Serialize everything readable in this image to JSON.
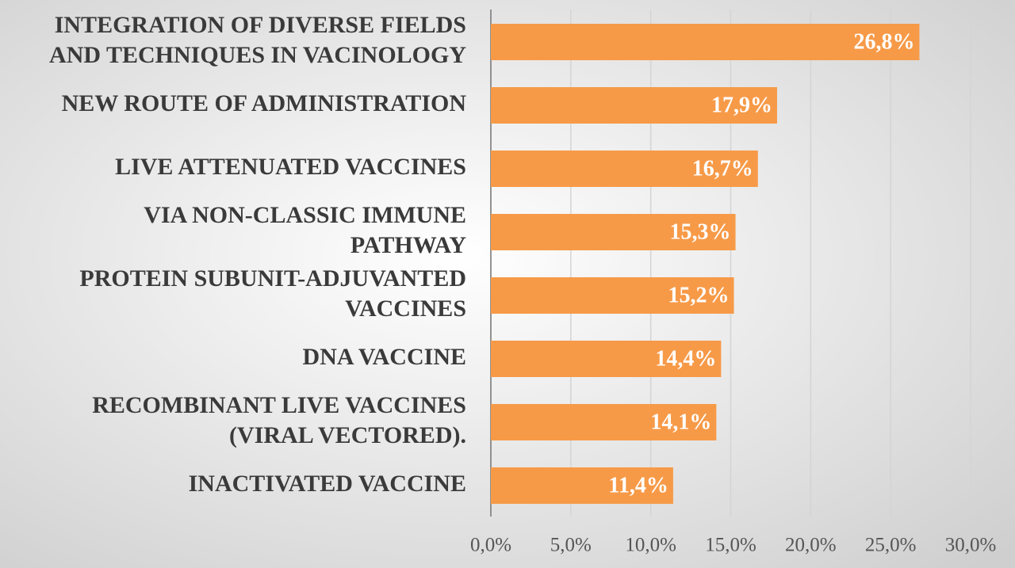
{
  "chart_data": {
    "type": "bar",
    "orientation": "horizontal",
    "categories": [
      "INTEGRATION OF DIVERSE FIELDS\nAND TECHNIQUES IN VACINOLOGY",
      "NEW ROUTE OF ADMINISTRATION",
      "LIVE ATTENUATED VACCINES",
      "VIA NON-CLASSIC IMMUNE\nPATHWAY",
      "PROTEIN SUBUNIT-ADJUVANTED\nVACCINES",
      "DNA VACCINE",
      "RECOMBINANT LIVE VACCINES\n(VIRAL VECTORED).",
      "INACTIVATED VACCINE"
    ],
    "values": [
      26.8,
      17.9,
      16.7,
      15.3,
      15.2,
      14.4,
      14.1,
      11.4
    ],
    "value_labels": [
      "26,8%",
      "17,9%",
      "16,7%",
      "15,3%",
      "15,2%",
      "14,4%",
      "14,1%",
      "11,4%"
    ],
    "color": "#f79a48",
    "xlim": [
      0,
      30
    ],
    "xticks": [
      {
        "value": 0,
        "label": "0,0%"
      },
      {
        "value": 5,
        "label": "5,0%"
      },
      {
        "value": 10,
        "label": "10,0%"
      },
      {
        "value": 15,
        "label": "15,0%"
      },
      {
        "value": 20,
        "label": "20,0%"
      },
      {
        "value": 25,
        "label": "25,0%"
      },
      {
        "value": 30,
        "label": "30,0%"
      }
    ],
    "grid": true
  }
}
